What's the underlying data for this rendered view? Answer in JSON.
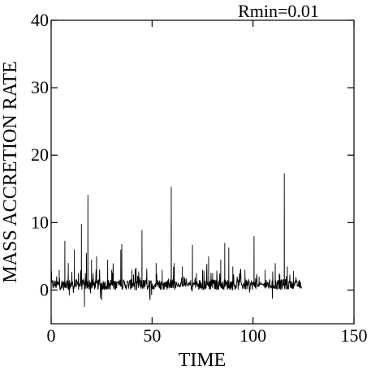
{
  "chart_data": {
    "type": "line",
    "title": "Rmin=0.01",
    "xlabel": "TIME",
    "ylabel": "MASS ACCRETION RATE",
    "xlim": [
      0,
      150
    ],
    "ylim": [
      -5,
      40
    ],
    "x_ticks": [
      0,
      50,
      100,
      150
    ],
    "y_ticks": [
      0,
      10,
      20,
      30,
      40
    ],
    "x_tick_labels": [
      "0",
      "50",
      "100",
      "150"
    ],
    "y_tick_labels": [
      "0",
      "10",
      "20",
      "30",
      "40"
    ],
    "grid": false,
    "color": "#000000",
    "series": [
      {
        "x_range": [
          0,
          124
        ],
        "baseline": 0.8,
        "peaks": [
          {
            "x": 4.0,
            "y": 3.0
          },
          {
            "x": 6.8,
            "y": 7.3
          },
          {
            "x": 8.5,
            "y": 4.0
          },
          {
            "x": 9.0,
            "y": -0.8
          },
          {
            "x": 11.5,
            "y": 6.0
          },
          {
            "x": 13.5,
            "y": 2.5
          },
          {
            "x": 15.0,
            "y": 9.8
          },
          {
            "x": 16.5,
            "y": -2.5
          },
          {
            "x": 17.5,
            "y": 5.5
          },
          {
            "x": 18.2,
            "y": 14.1
          },
          {
            "x": 19.5,
            "y": -0.5
          },
          {
            "x": 20.0,
            "y": 4.5
          },
          {
            "x": 22.5,
            "y": 5.0
          },
          {
            "x": 25.0,
            "y": -1.5
          },
          {
            "x": 28.0,
            "y": 4.5
          },
          {
            "x": 30.0,
            "y": 3.0
          },
          {
            "x": 34.5,
            "y": 6.0
          },
          {
            "x": 35.0,
            "y": 6.8
          },
          {
            "x": 40.0,
            "y": 3.0
          },
          {
            "x": 45.0,
            "y": 8.9
          },
          {
            "x": 49.0,
            "y": -1.5
          },
          {
            "x": 52.0,
            "y": 4.0
          },
          {
            "x": 55.0,
            "y": 3.0
          },
          {
            "x": 59.5,
            "y": 15.3
          },
          {
            "x": 61.0,
            "y": 4.0
          },
          {
            "x": 65.0,
            "y": 3.5
          },
          {
            "x": 70.0,
            "y": 6.7
          },
          {
            "x": 72.0,
            "y": 2.5
          },
          {
            "x": 75.0,
            "y": 3.0
          },
          {
            "x": 78.0,
            "y": 5.0
          },
          {
            "x": 80.0,
            "y": 2.5
          },
          {
            "x": 84.0,
            "y": 4.5
          },
          {
            "x": 86.0,
            "y": 7.0
          },
          {
            "x": 88.0,
            "y": 6.3
          },
          {
            "x": 90.0,
            "y": 3.5
          },
          {
            "x": 96.0,
            "y": 3.0
          },
          {
            "x": 100.5,
            "y": 8.0
          },
          {
            "x": 103.0,
            "y": 2.0
          },
          {
            "x": 106.0,
            "y": 3.0
          },
          {
            "x": 111.0,
            "y": 4.0
          },
          {
            "x": 113.0,
            "y": 2.5
          },
          {
            "x": 115.5,
            "y": 17.3
          },
          {
            "x": 117.0,
            "y": 3.5
          },
          {
            "x": 120.0,
            "y": 2.8
          },
          {
            "x": 123.0,
            "y": 1.5
          }
        ]
      }
    ]
  }
}
